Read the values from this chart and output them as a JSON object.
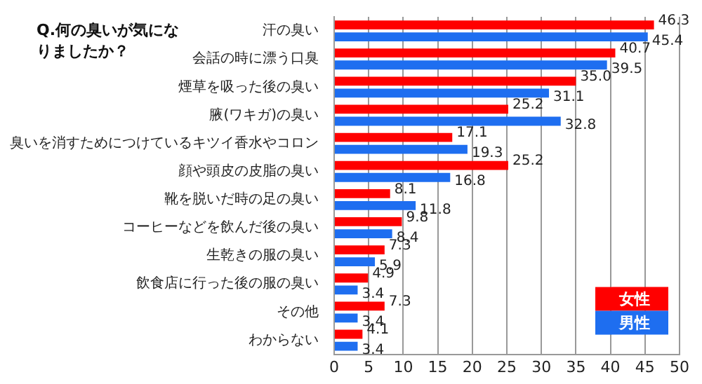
{
  "chart_data": {
    "type": "bar",
    "orientation": "horizontal",
    "title": "Q.何の臭いが気になりましたか？",
    "categories": [
      "汗の臭い",
      "会話の時に漂う口臭",
      "煙草を吸った後の臭い",
      "腋(ワキガ)の臭い",
      "臭いを消すためにつけているキツイ香水やコロン",
      "顔や頭皮の皮脂の臭い",
      "靴を脱いだ時の足の臭い",
      "コーヒーなどを飲んだ後の臭い",
      "生乾きの服の臭い",
      "飲食店に行った後の服の臭い",
      "その他",
      "わからない"
    ],
    "series": [
      {
        "name": "女性",
        "color": "#ff0000",
        "values": [
          46.3,
          40.7,
          35.0,
          25.2,
          17.1,
          25.2,
          8.1,
          9.8,
          7.3,
          4.9,
          7.3,
          4.1
        ],
        "value_labels": [
          "46.3",
          "40.7",
          "35.0",
          "25.2",
          "17.1",
          "25.2",
          "8.1",
          "9.8",
          "7.3",
          "4.9",
          "7.3",
          "4.1"
        ]
      },
      {
        "name": "男性",
        "color": "#1e6ef0",
        "values": [
          45.4,
          39.5,
          31.1,
          32.8,
          19.3,
          16.8,
          11.8,
          8.4,
          5.9,
          3.4,
          3.4,
          3.4
        ],
        "value_labels": [
          "45.4",
          "39.5",
          "31.1",
          "32.8",
          "19.3",
          "16.8",
          "11.8",
          "8.4",
          "5.9",
          "3.4",
          "3.4",
          "3.4"
        ]
      }
    ],
    "xlim": [
      0,
      50
    ],
    "xticks": [
      0,
      5,
      10,
      15,
      20,
      25,
      30,
      35,
      40,
      45,
      50
    ],
    "grid": "x",
    "legend": "bottom right"
  }
}
